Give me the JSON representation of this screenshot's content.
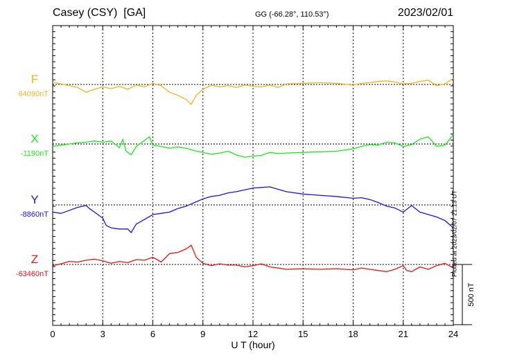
{
  "header": {
    "station": "Casey (CSY)  [GA]",
    "coords_label": "GG (-66.28°, 110.53°)",
    "date": "2023/02/01"
  },
  "footnote": "Plotted at 2023/02/07 21:13 UT",
  "colors": {
    "F": "#f2b21e",
    "X": "#1ee61e",
    "Y": "#1414e6",
    "Z": "#e61414",
    "axis": "#000000"
  },
  "chart_data": {
    "type": "line",
    "xlabel": "U T (hour)",
    "xlim": [
      0,
      24
    ],
    "xticks": [
      "0",
      "3",
      "6",
      "9",
      "12",
      "15",
      "18",
      "21",
      "24"
    ],
    "scale_bar_label": "500 nT",
    "scale_bar_nT": 500,
    "series": [
      {
        "name": "F",
        "baseline_label": "64090nT",
        "baseline_nT": 64090,
        "x": [
          0,
          0.5,
          1,
          1.5,
          2,
          2.5,
          3,
          3.5,
          4,
          4.5,
          5,
          5.5,
          6,
          6.5,
          7,
          7.5,
          8,
          8.3,
          8.6,
          9,
          9.5,
          10,
          10.5,
          11,
          11.5,
          12,
          12.5,
          13,
          13.5,
          14,
          15,
          16,
          17,
          18,
          18.5,
          19,
          19.5,
          20,
          20.5,
          21,
          21.5,
          22,
          22.5,
          23,
          23.5,
          24
        ],
        "y": [
          20,
          5,
          -10,
          -25,
          -65,
          -40,
          -20,
          -35,
          -15,
          -40,
          -5,
          -20,
          10,
          -10,
          -65,
          -90,
          -125,
          -165,
          -90,
          -40,
          -5,
          -20,
          -10,
          -25,
          -5,
          -15,
          -20,
          -5,
          -25,
          5,
          10,
          15,
          10,
          -5,
          10,
          15,
          25,
          30,
          20,
          5,
          10,
          25,
          35,
          -10,
          5,
          50
        ]
      },
      {
        "name": "X",
        "baseline_label": "-1190nT",
        "baseline_nT": -1190,
        "x": [
          0,
          0.5,
          1,
          1.5,
          2,
          2.5,
          3,
          3.5,
          4,
          4.2,
          4.4,
          4.7,
          5,
          5.5,
          5.8,
          6,
          6.5,
          7,
          7.5,
          8,
          8.5,
          9,
          9.5,
          10,
          10.5,
          11,
          11.5,
          12,
          12.5,
          13,
          13.5,
          14,
          15,
          16,
          17,
          18,
          18.5,
          19,
          19.5,
          20,
          20.5,
          21,
          21.5,
          22,
          22.5,
          23,
          23.5,
          24
        ],
        "y": [
          -20,
          -10,
          0,
          10,
          15,
          25,
          15,
          25,
          -30,
          40,
          -60,
          -90,
          -20,
          30,
          60,
          -10,
          -20,
          -35,
          -25,
          -35,
          -55,
          -70,
          -85,
          -75,
          -60,
          -90,
          -110,
          -100,
          -95,
          -70,
          -80,
          -75,
          -70,
          -65,
          -60,
          -40,
          -20,
          -5,
          -10,
          15,
          10,
          -20,
          -5,
          40,
          60,
          -20,
          -10,
          80
        ]
      },
      {
        "name": "Y",
        "baseline_label": "-8860nT",
        "baseline_nT": -8860,
        "x": [
          0,
          0.5,
          1,
          1.5,
          2,
          2.2,
          2.5,
          3,
          3.2,
          3.5,
          4,
          4.5,
          4.7,
          5,
          5.5,
          6,
          6.5,
          7,
          7.5,
          8,
          8.5,
          9,
          9.5,
          10,
          10.5,
          11,
          11.5,
          12,
          12.5,
          13,
          13.5,
          14,
          15,
          16,
          17,
          18,
          18.5,
          19,
          19.5,
          20,
          20.5,
          21,
          21.5,
          22,
          22.5,
          23,
          23.5,
          24
        ],
        "y": [
          -60,
          -70,
          -45,
          -20,
          -5,
          -30,
          -60,
          -110,
          -170,
          -190,
          -200,
          -200,
          -230,
          -160,
          -120,
          -80,
          -70,
          -60,
          -30,
          -10,
          20,
          50,
          70,
          80,
          100,
          110,
          125,
          140,
          145,
          150,
          130,
          110,
          90,
          80,
          70,
          55,
          60,
          45,
          20,
          -10,
          -25,
          -60,
          -5,
          -60,
          -80,
          -100,
          -130,
          -190
        ]
      },
      {
        "name": "Z",
        "baseline_label": "-63460nT",
        "baseline_nT": -63460,
        "x": [
          0,
          0.5,
          1,
          1.5,
          2,
          2.5,
          3,
          3.5,
          4,
          4.5,
          5,
          5.5,
          6,
          6.5,
          7,
          7.5,
          8,
          8.3,
          8.6,
          9,
          9.5,
          10,
          10.5,
          11,
          11.5,
          12,
          12.5,
          13,
          13.5,
          14,
          15,
          16,
          17,
          18,
          18.5,
          19,
          19.5,
          20,
          20.5,
          21,
          21.2,
          21.5,
          22,
          22.5,
          23,
          23.5,
          24
        ],
        "y": [
          -10,
          5,
          25,
          20,
          35,
          45,
          30,
          10,
          25,
          15,
          40,
          35,
          60,
          20,
          90,
          100,
          130,
          160,
          60,
          10,
          -10,
          5,
          -5,
          -5,
          -20,
          -10,
          5,
          -20,
          -30,
          -40,
          -35,
          -40,
          -35,
          -45,
          -30,
          -40,
          -50,
          -60,
          -40,
          -10,
          -50,
          -60,
          -20,
          -40,
          -10,
          10,
          -30
        ]
      }
    ]
  }
}
